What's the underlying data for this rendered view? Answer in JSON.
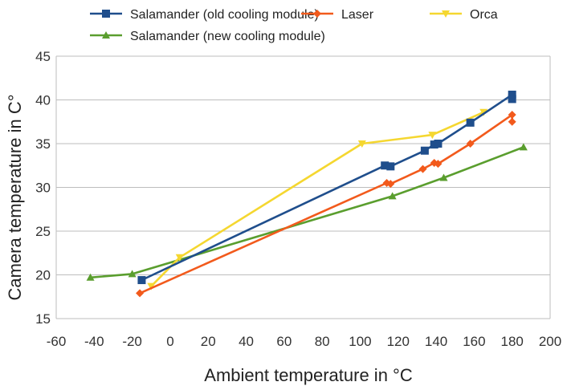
{
  "chart_data": {
    "type": "scatter",
    "xlabel": "Ambient temperature in °C",
    "ylabel": "Camera temperature in C°",
    "xlim": [
      -60,
      200
    ],
    "ylim": [
      15,
      45
    ],
    "x_ticks": [
      -60,
      -40,
      -20,
      0,
      20,
      40,
      60,
      80,
      100,
      120,
      140,
      160,
      180,
      200
    ],
    "y_ticks": [
      15,
      20,
      25,
      30,
      35,
      40,
      45
    ],
    "grid": "horizontal",
    "legend_position": "top",
    "series": [
      {
        "name": "Salamander (old cooling module)",
        "color": "#1f4e8c",
        "marker": "square",
        "points": [
          [
            -15,
            19.4
          ],
          [
            113,
            32.5
          ],
          [
            116,
            32.4
          ],
          [
            134,
            34.2
          ],
          [
            139,
            34.9
          ],
          [
            141,
            35.0
          ],
          [
            158,
            37.4
          ],
          [
            180,
            40.6
          ],
          [
            180,
            40.1
          ]
        ]
      },
      {
        "name": "Laser",
        "color": "#f25a1c",
        "marker": "diamond",
        "points": [
          [
            -16,
            17.9
          ],
          [
            114,
            30.5
          ],
          [
            116,
            30.4
          ],
          [
            133,
            32.1
          ],
          [
            139,
            32.8
          ],
          [
            141,
            32.7
          ],
          [
            158,
            35.0
          ],
          [
            180,
            38.3
          ],
          [
            180,
            37.5
          ]
        ]
      },
      {
        "name": "Orca",
        "color": "#f5d730",
        "marker": "triangle-down",
        "points": [
          [
            -10,
            18.7
          ],
          [
            5,
            22.0
          ],
          [
            101,
            35.0
          ],
          [
            138,
            36.0
          ],
          [
            165,
            38.6
          ]
        ]
      },
      {
        "name": "Salamander (new cooling module)",
        "color": "#5a9e2e",
        "marker": "triangle-up",
        "points": [
          [
            -42,
            19.7
          ],
          [
            -20,
            20.1
          ],
          [
            117,
            29.0
          ],
          [
            144,
            31.1
          ],
          [
            186,
            34.6
          ]
        ]
      }
    ]
  }
}
